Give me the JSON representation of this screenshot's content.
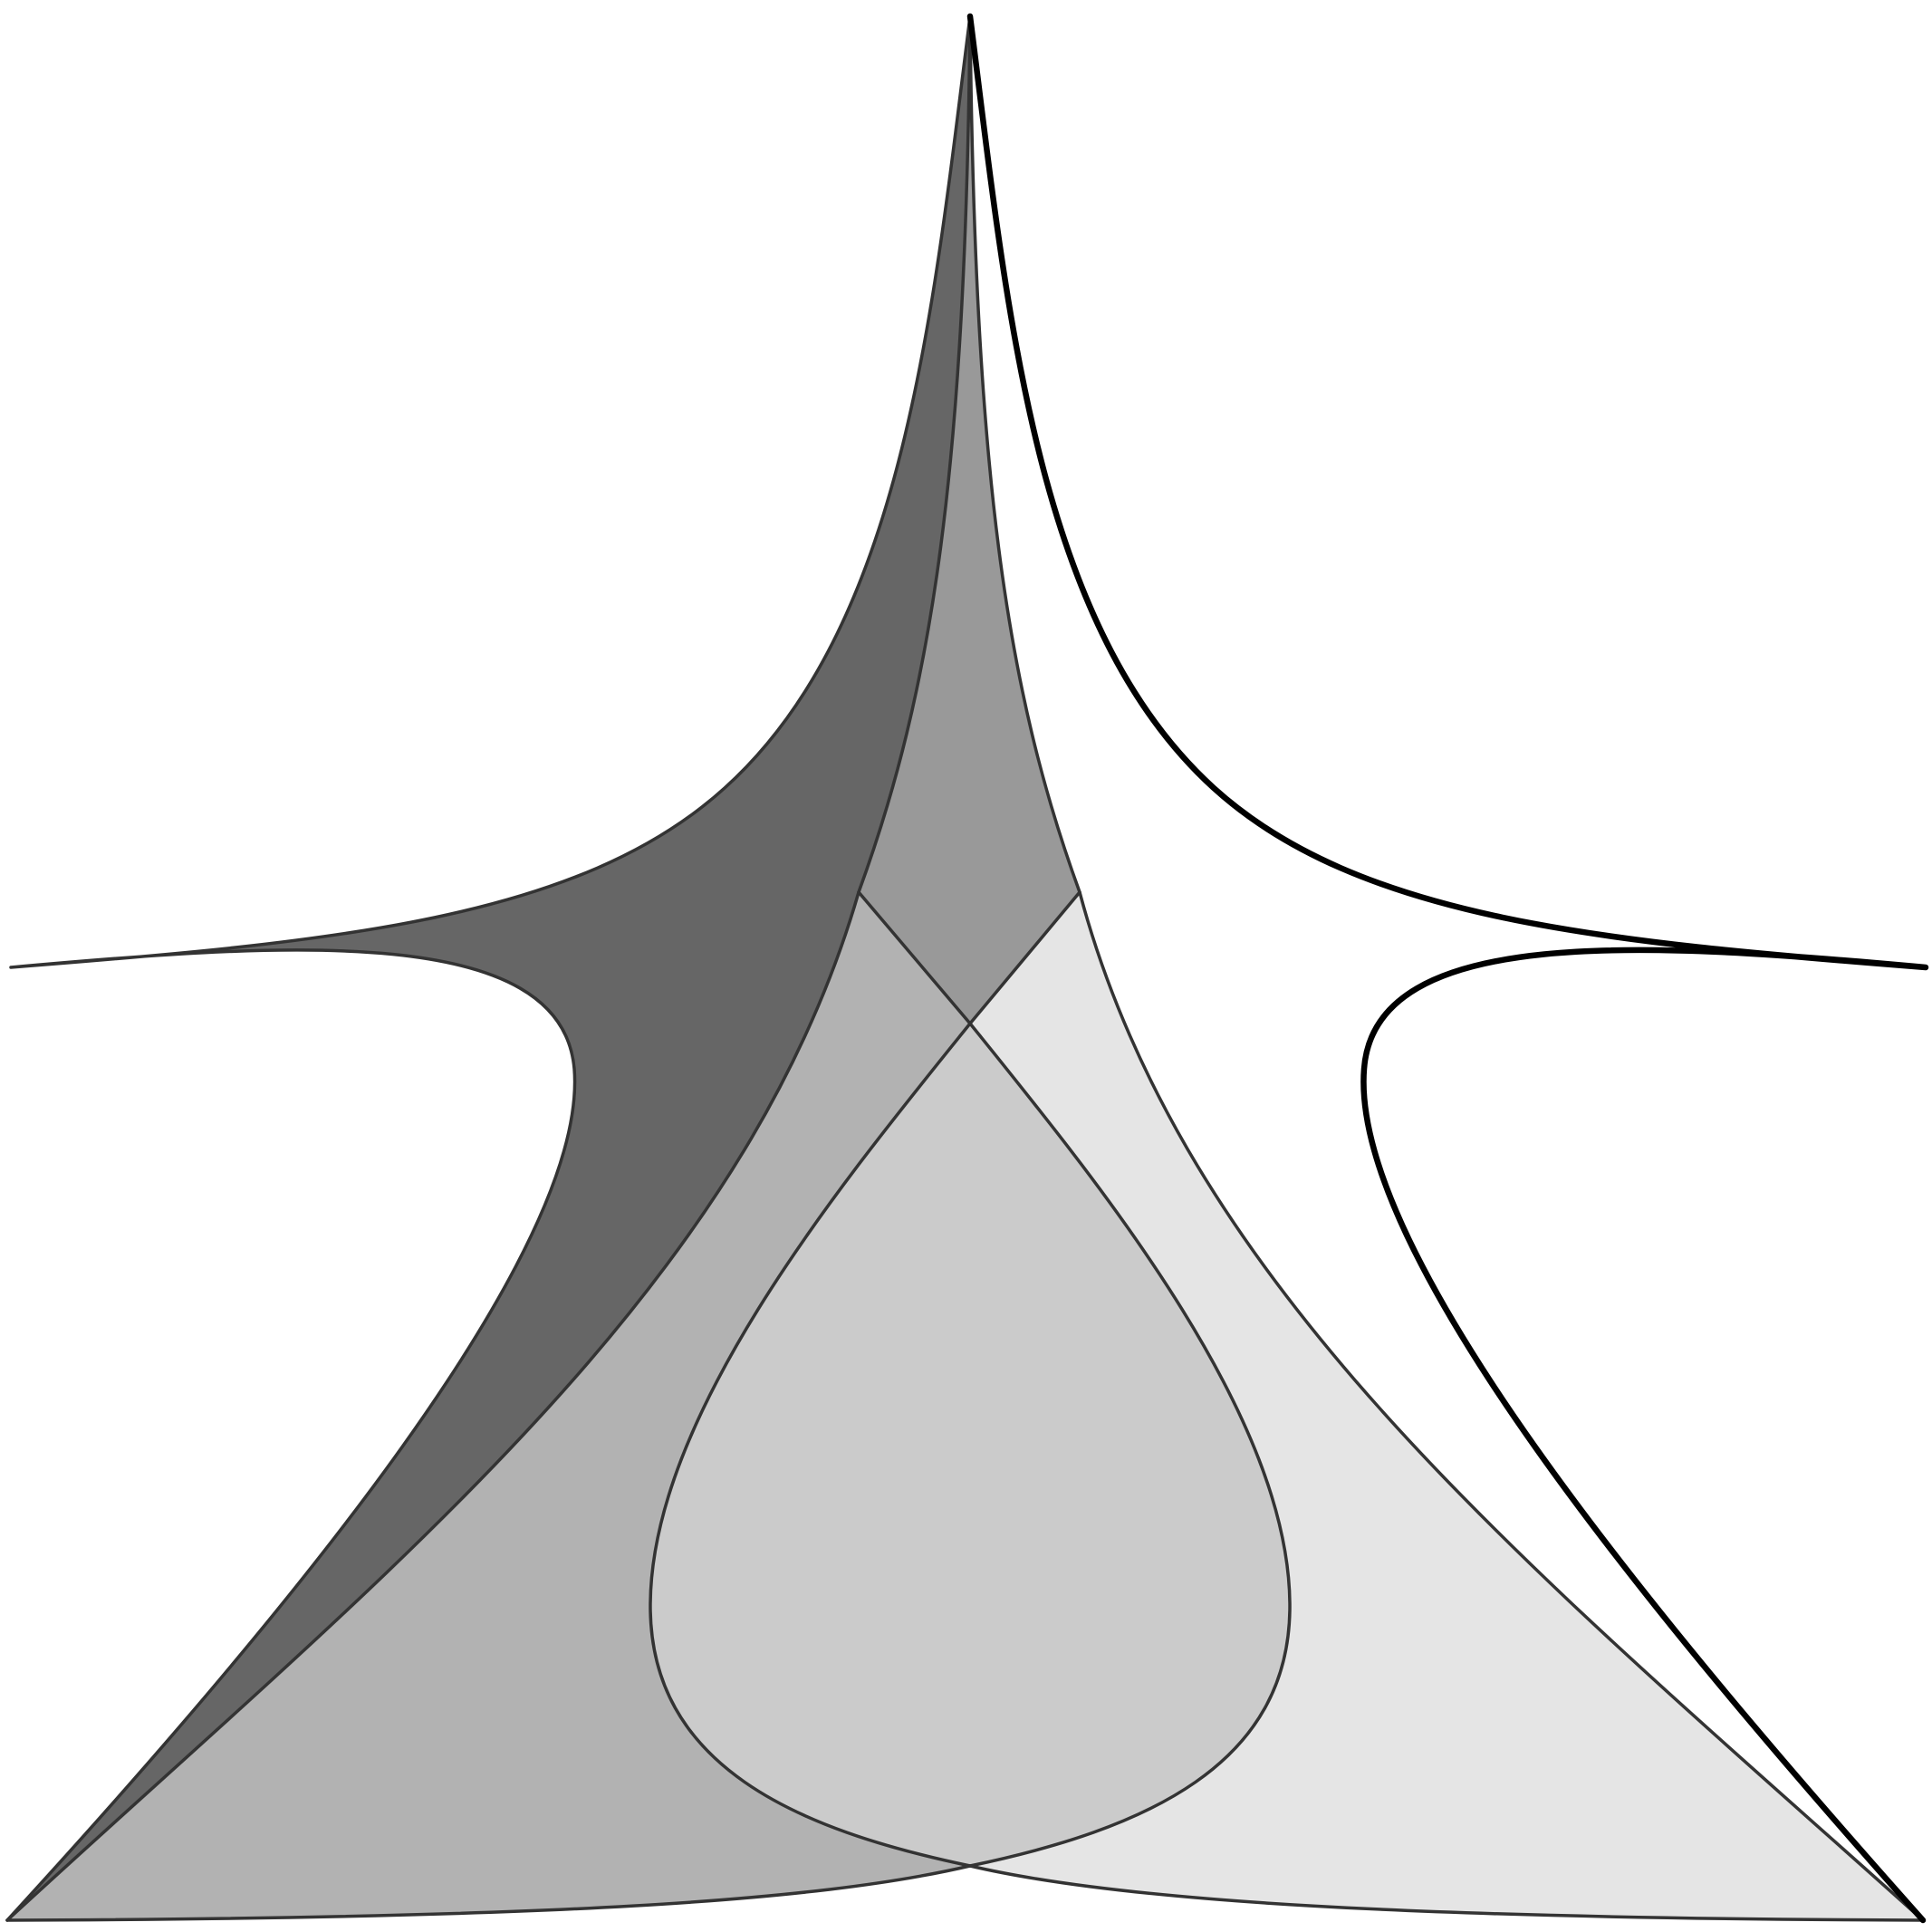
{
  "figure": {
    "type": "region-shaded curve diagram",
    "background": "#ffffff",
    "line_color": "#333333",
    "bold_line_color": "#000000",
    "shades": {
      "left_wing": "#666666",
      "top_lens": "#999999",
      "left_lower": "#b2b2b2",
      "central_loop": "#cbcbcb",
      "right_lower": "#e5e5e5"
    }
  }
}
